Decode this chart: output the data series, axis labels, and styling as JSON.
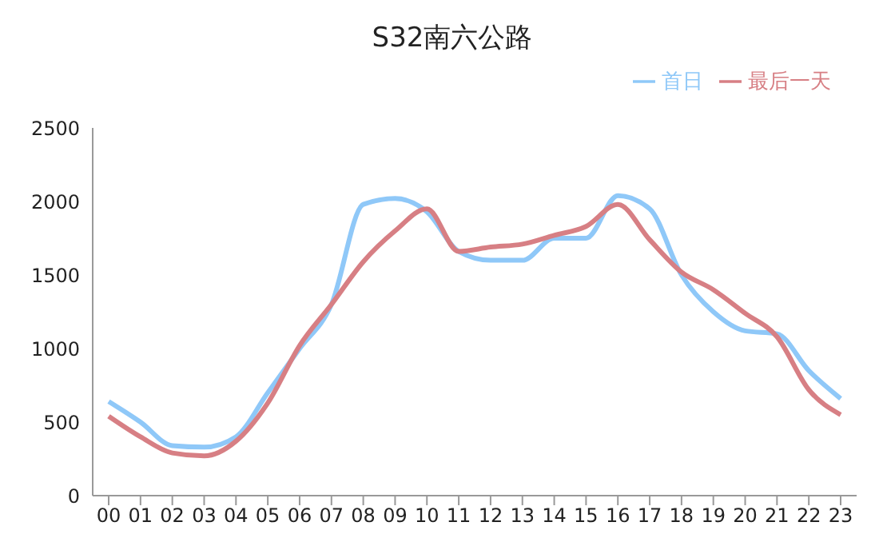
{
  "chart_data": {
    "type": "line",
    "title": "S32南六公路",
    "categories": [
      "00",
      "01",
      "02",
      "03",
      "04",
      "05",
      "06",
      "07",
      "08",
      "09",
      "10",
      "11",
      "12",
      "13",
      "14",
      "15",
      "16",
      "17",
      "18",
      "19",
      "20",
      "21",
      "22",
      "23"
    ],
    "series": [
      {
        "name": "首日",
        "color": "#8fc8f8",
        "values": [
          640,
          500,
          340,
          330,
          400,
          700,
          1000,
          1300,
          1980,
          2020,
          1930,
          1660,
          1600,
          1600,
          1750,
          1750,
          2040,
          1950,
          1500,
          1250,
          1120,
          1100,
          850,
          660
        ]
      },
      {
        "name": "最后一天",
        "color": "#d77f84",
        "values": [
          540,
          400,
          290,
          270,
          370,
          630,
          1020,
          1300,
          1590,
          1800,
          1950,
          1660,
          1690,
          1710,
          1770,
          1830,
          1980,
          1740,
          1520,
          1400,
          1240,
          1080,
          720,
          550
        ]
      }
    ],
    "ylim": [
      0,
      2500
    ],
    "yticks": [
      0,
      500,
      1000,
      1500,
      2000,
      2500
    ],
    "grid": false,
    "legend": "top right",
    "marker": "none",
    "line_style": "solid"
  }
}
